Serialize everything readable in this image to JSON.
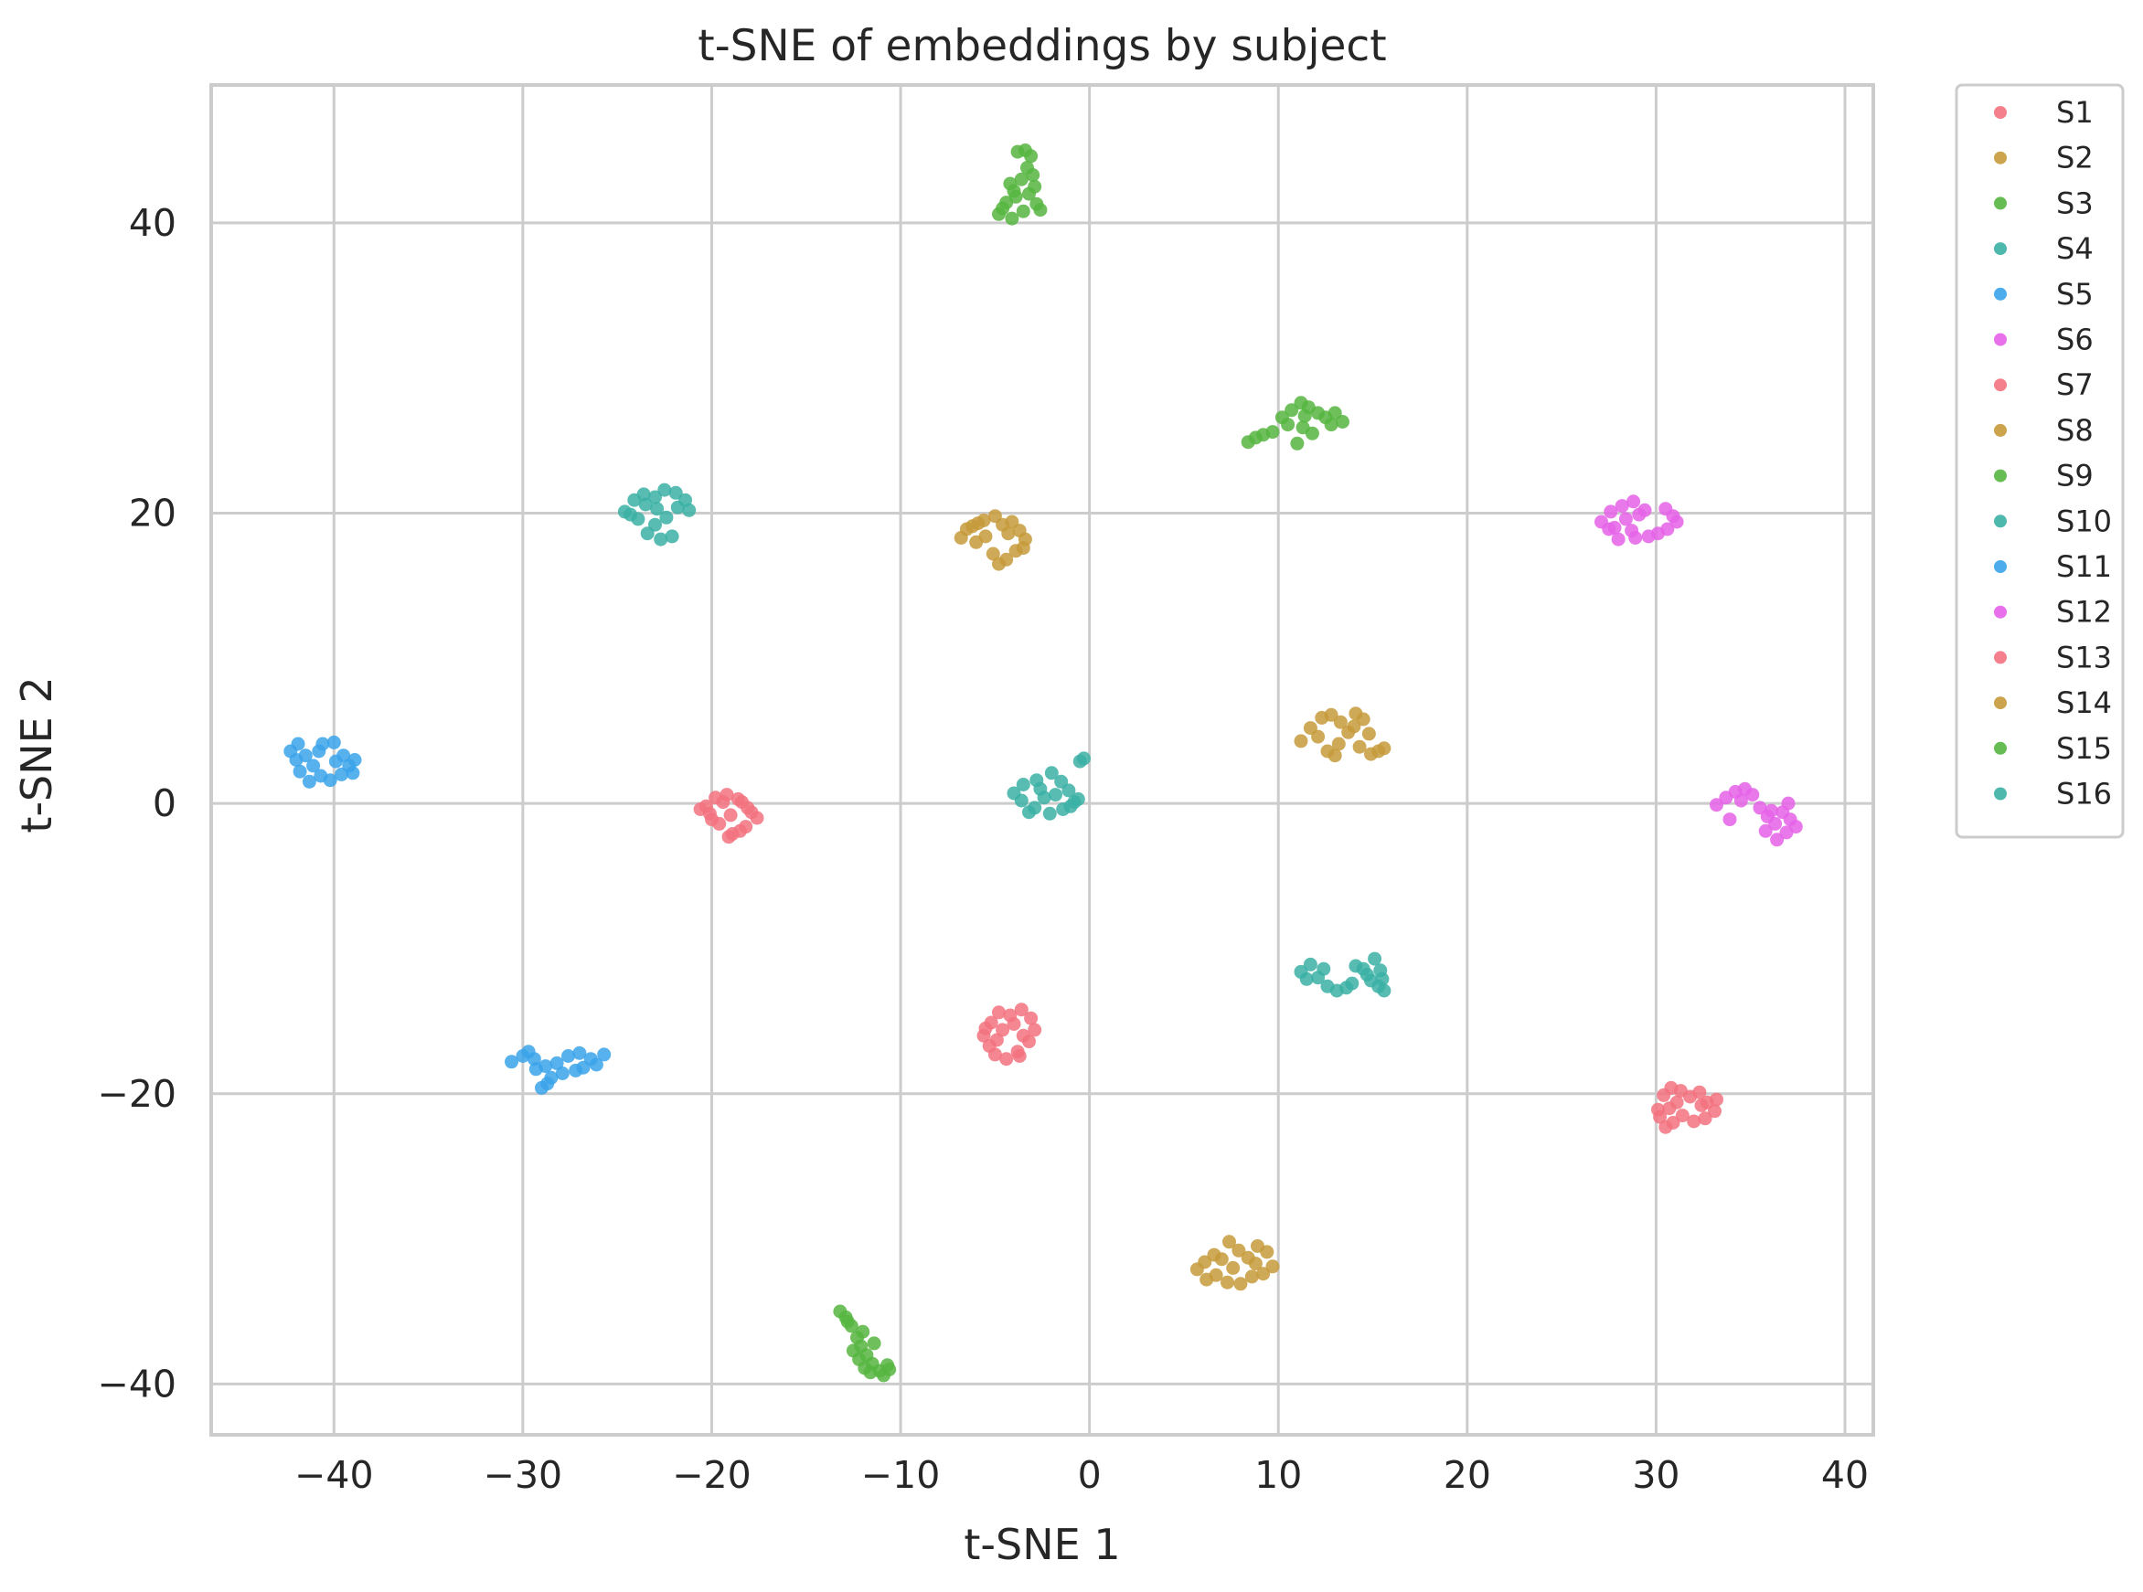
{
  "chart_data": {
    "type": "scatter",
    "title": "t-SNE of embeddings by subject",
    "xlabel": "t-SNE 1",
    "ylabel": "t-SNE 2",
    "xlim": [
      -46.5,
      41.5
    ],
    "ylim": [
      -43.5,
      49.5
    ],
    "xticks": [
      -40,
      -30,
      -20,
      -10,
      0,
      10,
      20,
      30,
      40
    ],
    "xtick_labels": [
      "−40",
      "−30",
      "−20",
      "−10",
      "0",
      "10",
      "20",
      "30",
      "40"
    ],
    "yticks": [
      -40,
      -20,
      0,
      20,
      40
    ],
    "ytick_labels": [
      "−40",
      "−20",
      "0",
      "20",
      "40"
    ],
    "grid": true,
    "legend_position": "outside-right",
    "series": [
      {
        "name": "S1",
        "color": "#f2727f",
        "points": [
          [
            -20.3,
            -0.2
          ],
          [
            -19.8,
            0.4
          ],
          [
            -19.2,
            0.6
          ],
          [
            -18.6,
            0.3
          ],
          [
            -18.1,
            -0.3
          ],
          [
            -17.6,
            -1.0
          ],
          [
            -18.2,
            -1.6
          ],
          [
            -18.9,
            -2.1
          ],
          [
            -19.6,
            -1.4
          ],
          [
            -20.1,
            -0.7
          ],
          [
            -19.0,
            -0.8
          ],
          [
            -18.5,
            -1.9
          ],
          [
            -19.4,
            0.1
          ],
          [
            -20.6,
            -0.4
          ],
          [
            -17.9,
            -0.6
          ],
          [
            -19.1,
            -2.3
          ],
          [
            -18.4,
            0.1
          ],
          [
            -20.0,
            -1.1
          ]
        ]
      },
      {
        "name": "S2",
        "color": "#c69a3a",
        "points": [
          [
            -6.8,
            18.3
          ],
          [
            -6.2,
            19.1
          ],
          [
            -5.6,
            19.5
          ],
          [
            -5.0,
            19.8
          ],
          [
            -4.6,
            19.2
          ],
          [
            -4.1,
            19.4
          ],
          [
            -3.7,
            18.8
          ],
          [
            -3.4,
            18.2
          ],
          [
            -3.9,
            17.4
          ],
          [
            -4.4,
            16.8
          ],
          [
            -5.1,
            17.2
          ],
          [
            -5.5,
            18.4
          ],
          [
            -6.0,
            18.0
          ],
          [
            -4.8,
            16.5
          ],
          [
            -3.5,
            17.6
          ],
          [
            -5.9,
            19.3
          ],
          [
            -4.3,
            18.6
          ],
          [
            -6.5,
            18.9
          ]
        ]
      },
      {
        "name": "S3",
        "color": "#56b540",
        "points": [
          [
            -4.8,
            40.6
          ],
          [
            -4.4,
            41.4
          ],
          [
            -4.0,
            42.2
          ],
          [
            -3.6,
            43.0
          ],
          [
            -3.3,
            43.8
          ],
          [
            -3.1,
            44.6
          ],
          [
            -3.8,
            44.9
          ],
          [
            -3.2,
            42.0
          ],
          [
            -2.8,
            41.3
          ],
          [
            -2.6,
            40.9
          ],
          [
            -4.1,
            40.3
          ],
          [
            -3.5,
            40.8
          ],
          [
            -3.9,
            41.8
          ],
          [
            -2.9,
            42.5
          ],
          [
            -4.6,
            41.0
          ],
          [
            -3.4,
            45.0
          ],
          [
            -3.0,
            43.3
          ],
          [
            -4.2,
            42.7
          ]
        ]
      },
      {
        "name": "S4",
        "color": "#3bb0a4",
        "points": [
          [
            -3.5,
            1.3
          ],
          [
            -2.8,
            1.6
          ],
          [
            -2.0,
            2.1
          ],
          [
            -1.5,
            1.5
          ],
          [
            -1.1,
            0.9
          ],
          [
            -0.8,
            0.1
          ],
          [
            -1.4,
            -0.4
          ],
          [
            -2.1,
            -0.7
          ],
          [
            -2.9,
            -0.3
          ],
          [
            -3.6,
            0.2
          ],
          [
            -4.0,
            0.7
          ],
          [
            -2.4,
            0.4
          ],
          [
            -1.8,
            0.6
          ],
          [
            -0.5,
            2.9
          ],
          [
            -0.3,
            3.1
          ],
          [
            -3.2,
            -0.6
          ],
          [
            -1.0,
            -0.2
          ],
          [
            -2.6,
            1.0
          ],
          [
            -0.6,
            0.3
          ]
        ]
      },
      {
        "name": "S5",
        "color": "#3aa3ea",
        "points": [
          [
            -42.3,
            3.6
          ],
          [
            -41.9,
            4.1
          ],
          [
            -41.5,
            3.3
          ],
          [
            -41.1,
            2.6
          ],
          [
            -40.7,
            1.9
          ],
          [
            -40.2,
            1.6
          ],
          [
            -39.6,
            2.0
          ],
          [
            -39.2,
            2.6
          ],
          [
            -38.9,
            3.0
          ],
          [
            -39.5,
            3.3
          ],
          [
            -40.0,
            4.2
          ],
          [
            -40.6,
            4.1
          ],
          [
            -41.3,
            1.5
          ],
          [
            -41.8,
            2.2
          ],
          [
            -42.0,
            3.0
          ],
          [
            -39.9,
            2.9
          ],
          [
            -40.8,
            3.6
          ],
          [
            -39.0,
            2.1
          ]
        ]
      },
      {
        "name": "S6",
        "color": "#e561e8",
        "points": [
          [
            27.1,
            19.4
          ],
          [
            27.6,
            20.1
          ],
          [
            28.2,
            20.5
          ],
          [
            28.8,
            20.8
          ],
          [
            29.4,
            20.2
          ],
          [
            28.7,
            18.8
          ],
          [
            28.0,
            18.2
          ],
          [
            27.5,
            18.9
          ],
          [
            28.4,
            19.6
          ],
          [
            29.6,
            18.4
          ],
          [
            30.1,
            18.6
          ],
          [
            30.5,
            20.3
          ],
          [
            30.9,
            19.8
          ],
          [
            31.1,
            19.4
          ],
          [
            30.6,
            18.9
          ],
          [
            27.8,
            19.0
          ],
          [
            29.1,
            19.9
          ],
          [
            28.9,
            18.3
          ]
        ]
      },
      {
        "name": "S7",
        "color": "#f2727f",
        "points": [
          [
            -5.6,
            -16.0
          ],
          [
            -5.2,
            -15.1
          ],
          [
            -4.8,
            -14.4
          ],
          [
            -4.2,
            -14.6
          ],
          [
            -3.6,
            -14.2
          ],
          [
            -3.1,
            -14.8
          ],
          [
            -2.9,
            -15.6
          ],
          [
            -3.2,
            -16.4
          ],
          [
            -3.8,
            -17.1
          ],
          [
            -4.4,
            -17.6
          ],
          [
            -5.0,
            -17.3
          ],
          [
            -5.3,
            -16.7
          ],
          [
            -4.6,
            -15.6
          ],
          [
            -3.5,
            -16.0
          ],
          [
            -4.0,
            -15.2
          ],
          [
            -5.5,
            -15.5
          ],
          [
            -4.9,
            -16.3
          ],
          [
            -3.7,
            -17.4
          ]
        ]
      },
      {
        "name": "S8",
        "color": "#c69a3a",
        "points": [
          [
            11.2,
            4.3
          ],
          [
            11.7,
            5.2
          ],
          [
            12.3,
            5.9
          ],
          [
            12.8,
            6.1
          ],
          [
            13.3,
            5.6
          ],
          [
            13.7,
            4.9
          ],
          [
            13.2,
            4.1
          ],
          [
            12.6,
            3.6
          ],
          [
            14.1,
            6.2
          ],
          [
            14.5,
            5.8
          ],
          [
            14.8,
            4.8
          ],
          [
            14.3,
            3.9
          ],
          [
            14.9,
            3.4
          ],
          [
            15.6,
            3.8
          ],
          [
            15.3,
            3.6
          ],
          [
            12.1,
            4.6
          ],
          [
            13.0,
            3.3
          ],
          [
            14.0,
            5.3
          ]
        ]
      },
      {
        "name": "S9",
        "color": "#56b540",
        "points": [
          [
            8.4,
            24.9
          ],
          [
            8.8,
            25.2
          ],
          [
            9.2,
            25.4
          ],
          [
            9.7,
            25.6
          ],
          [
            10.2,
            26.6
          ],
          [
            10.7,
            27.1
          ],
          [
            11.2,
            27.6
          ],
          [
            11.6,
            27.3
          ],
          [
            11.3,
            25.9
          ],
          [
            11.0,
            24.8
          ],
          [
            12.1,
            26.9
          ],
          [
            12.5,
            26.6
          ],
          [
            13.0,
            26.9
          ],
          [
            13.4,
            26.3
          ],
          [
            10.5,
            26.1
          ],
          [
            11.8,
            25.5
          ],
          [
            12.8,
            26.1
          ],
          [
            11.4,
            26.7
          ]
        ]
      },
      {
        "name": "S10",
        "color": "#3bb0a4",
        "points": [
          [
            -24.6,
            20.1
          ],
          [
            -24.1,
            20.9
          ],
          [
            -23.6,
            21.3
          ],
          [
            -23.0,
            21.1
          ],
          [
            -22.5,
            21.6
          ],
          [
            -21.9,
            21.4
          ],
          [
            -21.4,
            20.9
          ],
          [
            -21.2,
            20.2
          ],
          [
            -21.8,
            20.4
          ],
          [
            -22.4,
            19.7
          ],
          [
            -23.0,
            19.2
          ],
          [
            -23.4,
            18.6
          ],
          [
            -22.7,
            18.2
          ],
          [
            -22.1,
            18.4
          ],
          [
            -23.9,
            19.6
          ],
          [
            -24.3,
            19.9
          ],
          [
            -22.9,
            20.3
          ],
          [
            -23.5,
            20.6
          ]
        ]
      },
      {
        "name": "S11",
        "color": "#3aa3ea",
        "points": [
          [
            -30.6,
            -17.8
          ],
          [
            -30.0,
            -17.4
          ],
          [
            -29.4,
            -17.6
          ],
          [
            -28.8,
            -18.1
          ],
          [
            -28.2,
            -17.9
          ],
          [
            -27.6,
            -17.4
          ],
          [
            -27.0,
            -17.2
          ],
          [
            -26.4,
            -17.6
          ],
          [
            -25.7,
            -17.3
          ],
          [
            -27.2,
            -18.4
          ],
          [
            -26.8,
            -18.2
          ],
          [
            -28.5,
            -18.9
          ],
          [
            -29.0,
            -19.6
          ],
          [
            -28.7,
            -19.3
          ],
          [
            -29.7,
            -17.1
          ],
          [
            -27.9,
            -18.6
          ],
          [
            -26.1,
            -18.0
          ],
          [
            -29.3,
            -18.3
          ]
        ]
      },
      {
        "name": "S12",
        "color": "#e561e8",
        "points": [
          [
            33.2,
            -0.1
          ],
          [
            33.7,
            0.4
          ],
          [
            34.2,
            0.8
          ],
          [
            34.7,
            1.0
          ],
          [
            35.1,
            0.6
          ],
          [
            35.5,
            -0.3
          ],
          [
            35.9,
            -0.9
          ],
          [
            36.3,
            -1.4
          ],
          [
            36.7,
            -0.6
          ],
          [
            37.1,
            -1.1
          ],
          [
            37.4,
            -1.6
          ],
          [
            36.9,
            -2.0
          ],
          [
            36.4,
            -2.5
          ],
          [
            35.8,
            -1.9
          ],
          [
            33.9,
            -1.1
          ],
          [
            34.5,
            0.2
          ],
          [
            36.1,
            -0.5
          ],
          [
            37.0,
            0.0
          ]
        ]
      },
      {
        "name": "S13",
        "color": "#f2727f",
        "points": [
          [
            30.1,
            -21.1
          ],
          [
            30.4,
            -20.1
          ],
          [
            30.8,
            -19.6
          ],
          [
            31.3,
            -19.8
          ],
          [
            31.8,
            -20.2
          ],
          [
            32.3,
            -19.9
          ],
          [
            32.7,
            -20.6
          ],
          [
            33.1,
            -21.2
          ],
          [
            32.6,
            -21.7
          ],
          [
            32.0,
            -21.9
          ],
          [
            31.4,
            -21.5
          ],
          [
            30.9,
            -22.0
          ],
          [
            30.5,
            -22.3
          ],
          [
            30.2,
            -21.6
          ],
          [
            33.2,
            -20.4
          ],
          [
            31.1,
            -20.6
          ],
          [
            32.4,
            -20.8
          ],
          [
            30.7,
            -21.0
          ]
        ]
      },
      {
        "name": "S14",
        "color": "#c69a3a",
        "points": [
          [
            5.7,
            -32.1
          ],
          [
            6.1,
            -31.6
          ],
          [
            6.6,
            -31.1
          ],
          [
            7.0,
            -31.4
          ],
          [
            7.4,
            -30.2
          ],
          [
            7.9,
            -30.8
          ],
          [
            8.4,
            -31.3
          ],
          [
            8.9,
            -30.5
          ],
          [
            9.4,
            -30.9
          ],
          [
            9.7,
            -31.9
          ],
          [
            9.2,
            -32.4
          ],
          [
            8.6,
            -32.6
          ],
          [
            8.0,
            -33.1
          ],
          [
            7.3,
            -33.0
          ],
          [
            6.7,
            -32.5
          ],
          [
            6.2,
            -32.8
          ],
          [
            7.6,
            -32.0
          ],
          [
            8.8,
            -31.7
          ]
        ]
      },
      {
        "name": "S15",
        "color": "#56b540",
        "points": [
          [
            -13.2,
            -35.0
          ],
          [
            -12.9,
            -35.4
          ],
          [
            -12.6,
            -36.0
          ],
          [
            -12.3,
            -36.8
          ],
          [
            -12.1,
            -37.4
          ],
          [
            -11.8,
            -38.0
          ],
          [
            -11.5,
            -38.6
          ],
          [
            -11.1,
            -39.1
          ],
          [
            -10.7,
            -38.7
          ],
          [
            -10.9,
            -39.4
          ],
          [
            -11.6,
            -39.2
          ],
          [
            -12.2,
            -38.3
          ],
          [
            -12.5,
            -37.7
          ],
          [
            -11.4,
            -37.2
          ],
          [
            -12.8,
            -35.7
          ],
          [
            -10.6,
            -39.0
          ],
          [
            -11.9,
            -38.9
          ],
          [
            -12.0,
            -36.4
          ]
        ]
      },
      {
        "name": "S16",
        "color": "#3bb0a4",
        "points": [
          [
            11.2,
            -11.6
          ],
          [
            11.7,
            -11.1
          ],
          [
            12.1,
            -12.0
          ],
          [
            12.6,
            -12.6
          ],
          [
            13.1,
            -12.9
          ],
          [
            13.6,
            -12.7
          ],
          [
            14.1,
            -11.2
          ],
          [
            14.5,
            -11.4
          ],
          [
            14.9,
            -12.2
          ],
          [
            15.3,
            -12.6
          ],
          [
            15.6,
            -12.9
          ],
          [
            15.4,
            -11.5
          ],
          [
            15.1,
            -10.7
          ],
          [
            14.7,
            -11.8
          ],
          [
            11.5,
            -12.1
          ],
          [
            13.9,
            -12.4
          ],
          [
            12.4,
            -11.4
          ],
          [
            15.5,
            -12.1
          ]
        ]
      }
    ]
  }
}
